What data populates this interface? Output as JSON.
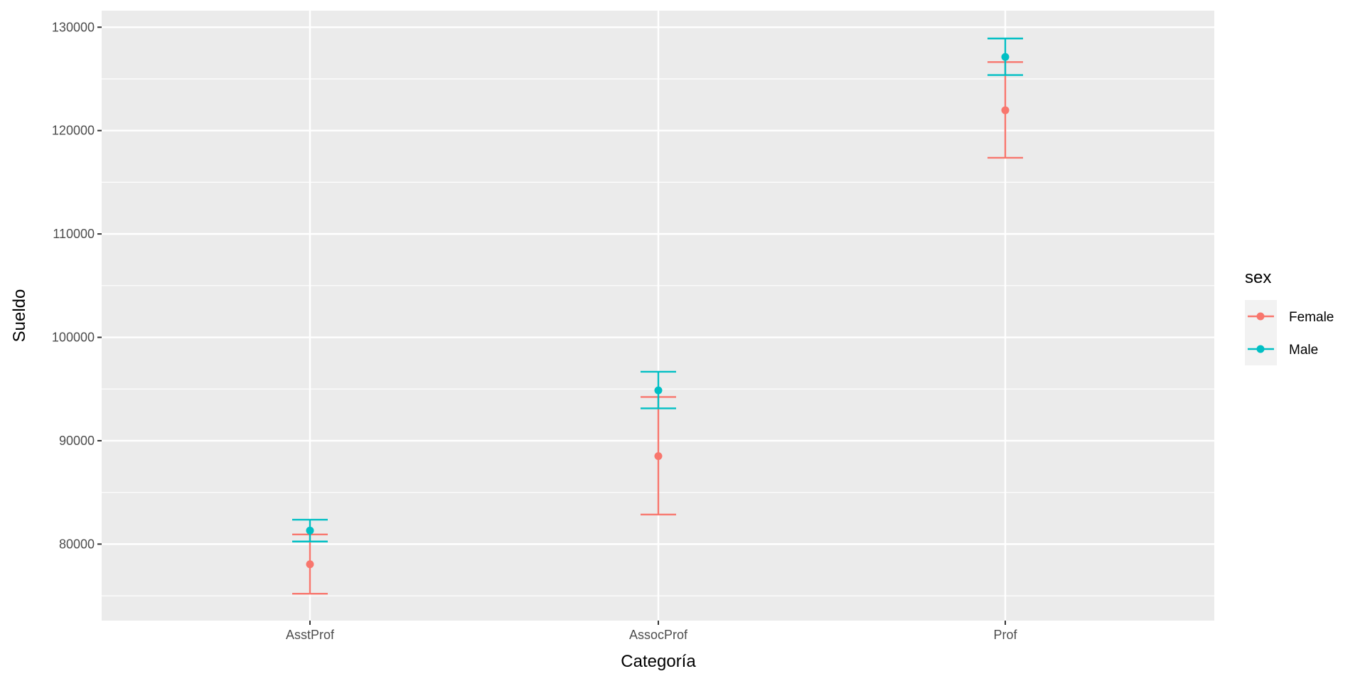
{
  "chart_data": {
    "type": "errorbar",
    "title": "",
    "xlabel": "Categoría",
    "ylabel": "Sueldo",
    "categories": [
      "AsstProf",
      "AssocProf",
      "Prof"
    ],
    "ylim": [
      72600,
      131600
    ],
    "yticks": [
      80000,
      90000,
      100000,
      110000,
      120000,
      130000
    ],
    "grid": true,
    "legend": {
      "title": "sex",
      "position": "right"
    },
    "series": [
      {
        "name": "Female",
        "color": "#F8766D",
        "mean": [
          78050,
          88513,
          121968
        ],
        "lower": [
          75200,
          82860,
          117370
        ],
        "upper": [
          80930,
          94230,
          126630
        ]
      },
      {
        "name": "Male",
        "color": "#00BFC4",
        "mean": [
          81311,
          94870,
          127121
        ],
        "lower": [
          80250,
          93130,
          125370
        ],
        "upper": [
          82360,
          96670,
          128910
        ]
      }
    ]
  }
}
